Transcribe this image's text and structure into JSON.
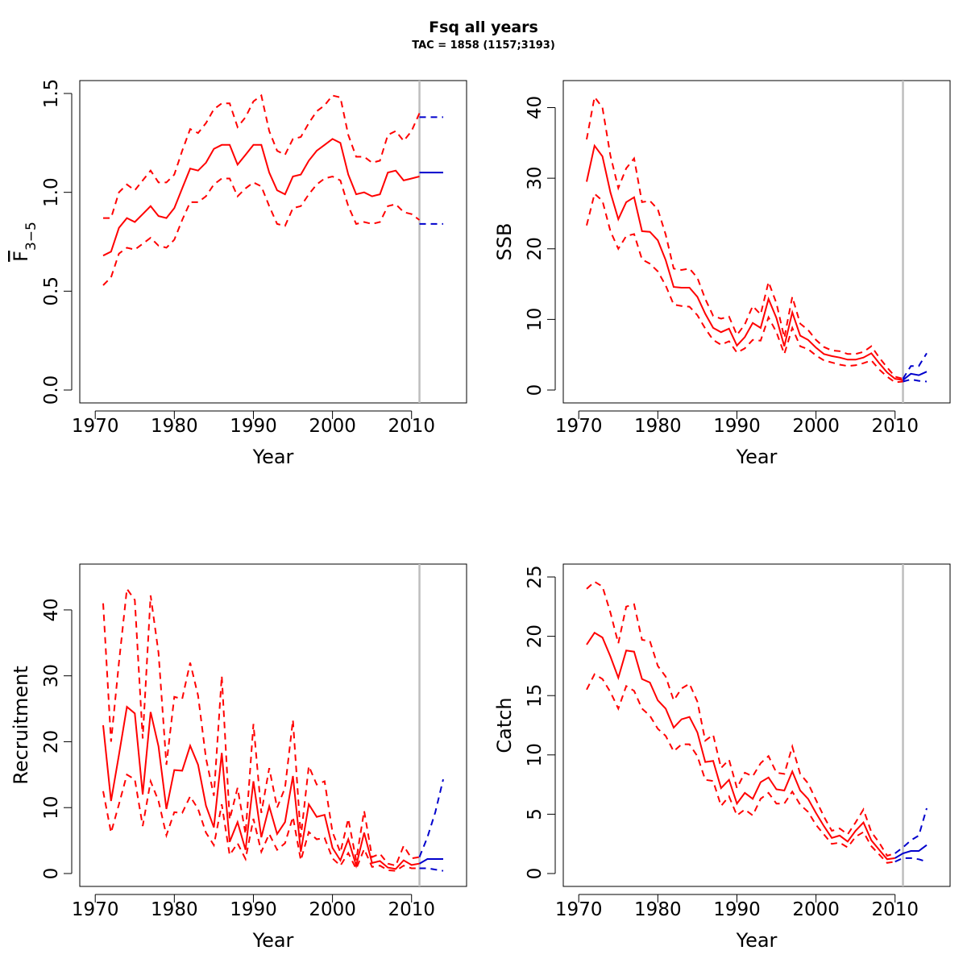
{
  "title": "Fsq all years",
  "subtitle": "TAC = 1858 (1157;3193)",
  "colors": {
    "historic": "#ff0000",
    "projection": "#0000cc",
    "reference_line": "#bebebe"
  },
  "chart_data": [
    {
      "type": "line",
      "xlabel": "Year",
      "ylabel": "F3-5",
      "ylabel_main": "F",
      "ylabel_sub": "3−5",
      "xlim": [
        1970,
        2015
      ],
      "ylim": [
        0,
        1.5
      ],
      "xticks": [
        1970,
        1980,
        1990,
        2000,
        2010
      ],
      "yticks": [
        0.0,
        0.5,
        1.0,
        1.5
      ],
      "ytick_labels": [
        "0.0",
        "0.5",
        "1.0",
        "1.5"
      ],
      "vline_x": 2011,
      "historic": {
        "x": [
          1971,
          1972,
          1973,
          1974,
          1975,
          1976,
          1977,
          1978,
          1979,
          1980,
          1981,
          1982,
          1983,
          1984,
          1985,
          1986,
          1987,
          1988,
          1989,
          1990,
          1991,
          1992,
          1993,
          1994,
          1995,
          1996,
          1997,
          1998,
          1999,
          2000,
          2001,
          2002,
          2003,
          2004,
          2005,
          2006,
          2007,
          2008,
          2009,
          2010,
          2011
        ],
        "estimate": [
          0.68,
          0.7,
          0.82,
          0.87,
          0.85,
          0.89,
          0.93,
          0.88,
          0.87,
          0.92,
          1.02,
          1.12,
          1.11,
          1.15,
          1.22,
          1.24,
          1.24,
          1.14,
          1.19,
          1.24,
          1.24,
          1.1,
          1.01,
          0.99,
          1.08,
          1.09,
          1.16,
          1.21,
          1.24,
          1.27,
          1.25,
          1.09,
          0.99,
          1.0,
          0.98,
          0.99,
          1.1,
          1.11,
          1.06,
          1.07,
          1.08
        ],
        "lower": [
          0.53,
          0.57,
          0.69,
          0.72,
          0.71,
          0.74,
          0.77,
          0.73,
          0.72,
          0.76,
          0.86,
          0.95,
          0.95,
          0.98,
          1.04,
          1.07,
          1.07,
          0.98,
          1.02,
          1.05,
          1.03,
          0.93,
          0.84,
          0.83,
          0.92,
          0.93,
          0.99,
          1.04,
          1.07,
          1.08,
          1.06,
          0.93,
          0.84,
          0.85,
          0.84,
          0.85,
          0.93,
          0.94,
          0.9,
          0.89,
          0.86
        ],
        "upper": [
          0.87,
          0.87,
          1.0,
          1.04,
          1.01,
          1.06,
          1.11,
          1.05,
          1.05,
          1.09,
          1.21,
          1.32,
          1.3,
          1.35,
          1.42,
          1.45,
          1.45,
          1.33,
          1.38,
          1.46,
          1.49,
          1.31,
          1.21,
          1.19,
          1.27,
          1.28,
          1.35,
          1.41,
          1.44,
          1.49,
          1.48,
          1.29,
          1.18,
          1.18,
          1.15,
          1.16,
          1.29,
          1.31,
          1.26,
          1.31,
          1.4
        ]
      },
      "projection": {
        "x": [
          2011,
          2012,
          2013,
          2014
        ],
        "estimate": [
          1.1,
          1.1,
          1.1,
          1.1
        ],
        "lower": [
          0.84,
          0.84,
          0.84,
          0.84
        ],
        "upper": [
          1.38,
          1.38,
          1.38,
          1.38
        ]
      }
    },
    {
      "type": "line",
      "xlabel": "Year",
      "ylabel": "SSB",
      "xlim": [
        1970,
        2015
      ],
      "ylim": [
        0,
        42
      ],
      "xticks": [
        1970,
        1980,
        1990,
        2000,
        2010
      ],
      "yticks": [
        0,
        10,
        20,
        30,
        40
      ],
      "ytick_labels": [
        "0",
        "10",
        "20",
        "30",
        "40"
      ],
      "vline_x": 2011,
      "historic": {
        "x": [
          1971,
          1972,
          1973,
          1974,
          1975,
          1976,
          1977,
          1978,
          1979,
          1980,
          1981,
          1982,
          1983,
          1984,
          1985,
          1986,
          1987,
          1988,
          1989,
          1990,
          1991,
          1992,
          1993,
          1994,
          1995,
          1996,
          1997,
          1998,
          1999,
          2000,
          2001,
          2002,
          2003,
          2004,
          2005,
          2006,
          2007,
          2008,
          2009,
          2010,
          2011
        ],
        "estimate": [
          29.5,
          34.6,
          33.1,
          28.0,
          24.2,
          26.6,
          27.3,
          22.5,
          22.4,
          21.2,
          18.4,
          14.6,
          14.5,
          14.5,
          13.2,
          10.8,
          8.8,
          8.2,
          8.7,
          6.3,
          7.5,
          9.5,
          8.8,
          12.9,
          10.2,
          6.2,
          11.0,
          7.7,
          7.1,
          6.0,
          5.1,
          4.8,
          4.6,
          4.3,
          4.3,
          4.6,
          5.2,
          3.8,
          2.5,
          1.6,
          1.4
        ],
        "lower": [
          23.3,
          27.8,
          26.8,
          22.5,
          20.0,
          21.8,
          22.1,
          18.5,
          17.9,
          16.8,
          14.8,
          12.1,
          11.9,
          11.8,
          10.6,
          8.7,
          7.1,
          6.4,
          6.9,
          5.3,
          5.9,
          7.1,
          7.0,
          10.3,
          8.2,
          5.1,
          8.8,
          6.2,
          5.8,
          4.9,
          4.2,
          3.9,
          3.6,
          3.4,
          3.5,
          3.8,
          4.2,
          2.9,
          1.9,
          1.1,
          1.2
        ],
        "upper": [
          35.5,
          41.5,
          40.0,
          33.2,
          28.6,
          31.4,
          32.8,
          26.6,
          26.8,
          25.6,
          22.0,
          17.2,
          17.0,
          17.2,
          15.9,
          12.9,
          10.5,
          10.1,
          10.4,
          7.8,
          9.3,
          11.9,
          10.7,
          15.3,
          12.3,
          7.4,
          13.2,
          9.4,
          8.5,
          7.1,
          6.1,
          5.6,
          5.5,
          5.1,
          5.1,
          5.4,
          6.2,
          4.6,
          3.2,
          1.9,
          1.6
        ]
      },
      "projection": {
        "x": [
          2011,
          2012,
          2013,
          2014
        ],
        "estimate": [
          1.4,
          2.3,
          2.1,
          2.6
        ],
        "lower": [
          1.2,
          1.5,
          1.3,
          1.2
        ],
        "upper": [
          1.6,
          3.4,
          3.4,
          5.2
        ]
      }
    },
    {
      "type": "line",
      "xlabel": "Year",
      "ylabel": "Recruitment",
      "xlim": [
        1970,
        2015
      ],
      "ylim": [
        0,
        45
      ],
      "xticks": [
        1970,
        1980,
        1990,
        2000,
        2010
      ],
      "yticks": [
        0,
        10,
        20,
        30,
        40
      ],
      "ytick_labels": [
        "0",
        "10",
        "20",
        "30",
        "40"
      ],
      "vline_x": 2011,
      "historic": {
        "x": [
          1971,
          1972,
          1973,
          1974,
          1975,
          1976,
          1977,
          1978,
          1979,
          1980,
          1981,
          1982,
          1983,
          1984,
          1985,
          1986,
          1987,
          1988,
          1989,
          1990,
          1991,
          1992,
          1993,
          1994,
          1995,
          1996,
          1997,
          1998,
          1999,
          2000,
          2001,
          2002,
          2003,
          2004,
          2005,
          2006,
          2007,
          2008,
          2009,
          2010,
          2011
        ],
        "estimate": [
          22.5,
          11.0,
          18.0,
          25.3,
          24.3,
          12.0,
          24.5,
          19.3,
          9.8,
          15.7,
          15.6,
          19.4,
          16.5,
          10.3,
          7.0,
          18.3,
          4.8,
          7.8,
          3.6,
          14.0,
          5.5,
          10.2,
          6.0,
          7.8,
          14.8,
          3.3,
          10.5,
          8.6,
          8.9,
          3.9,
          2.0,
          5.2,
          1.2,
          6.2,
          1.6,
          1.9,
          0.9,
          0.7,
          2.0,
          1.3,
          1.5
        ],
        "lower": [
          12.5,
          6.2,
          10.5,
          15.0,
          14.3,
          7.2,
          14.0,
          11.0,
          5.8,
          9.3,
          9.2,
          11.7,
          9.8,
          6.2,
          4.3,
          10.5,
          2.8,
          4.6,
          2.2,
          8.3,
          3.3,
          6.0,
          3.6,
          4.6,
          8.6,
          2.0,
          6.3,
          5.2,
          5.4,
          2.3,
          1.2,
          3.1,
          0.7,
          3.7,
          1.0,
          1.2,
          0.5,
          0.4,
          1.2,
          0.8,
          0.8
        ],
        "upper": [
          41.0,
          20.0,
          32.0,
          43.2,
          41.5,
          20.5,
          42.2,
          33.5,
          16.5,
          26.8,
          26.5,
          32.0,
          27.0,
          17.5,
          11.8,
          30.0,
          8.2,
          13.0,
          6.0,
          22.7,
          9.2,
          16.0,
          10.0,
          13.0,
          23.3,
          5.5,
          16.3,
          13.5,
          14.0,
          6.3,
          3.2,
          8.3,
          2.0,
          9.5,
          2.5,
          3.0,
          1.5,
          1.2,
          4.2,
          2.3,
          2.5
        ]
      },
      "projection": {
        "x": [
          2011,
          2012,
          2013,
          2014
        ],
        "estimate": [
          1.5,
          2.2,
          2.2,
          2.2
        ],
        "lower": [
          0.8,
          0.8,
          0.6,
          0.4
        ],
        "upper": [
          2.5,
          5.5,
          9.3,
          14.3
        ]
      }
    },
    {
      "type": "line",
      "xlabel": "Year",
      "ylabel": "Catch",
      "xlim": [
        1970,
        2015
      ],
      "ylim": [
        0,
        25
      ],
      "xticks": [
        1970,
        1980,
        1990,
        2000,
        2010
      ],
      "yticks": [
        0,
        5,
        10,
        15,
        20,
        25
      ],
      "ytick_labels": [
        "0",
        "5",
        "10",
        "15",
        "20",
        "25"
      ],
      "vline_x": 2011,
      "historic": {
        "x": [
          1971,
          1972,
          1973,
          1974,
          1975,
          1976,
          1977,
          1978,
          1979,
          1980,
          1981,
          1982,
          1983,
          1984,
          1985,
          1986,
          1987,
          1988,
          1989,
          1990,
          1991,
          1992,
          1993,
          1994,
          1995,
          1996,
          1997,
          1998,
          1999,
          2000,
          2001,
          2002,
          2003,
          2004,
          2005,
          2006,
          2007,
          2008,
          2009,
          2010
        ],
        "estimate": [
          19.3,
          20.3,
          19.9,
          18.3,
          16.5,
          18.8,
          18.7,
          16.4,
          16.1,
          14.6,
          13.9,
          12.3,
          13.0,
          13.2,
          11.9,
          9.4,
          9.5,
          7.2,
          7.9,
          5.9,
          6.8,
          6.3,
          7.7,
          8.1,
          7.1,
          7.0,
          8.6,
          7.0,
          6.3,
          5.1,
          4.0,
          3.0,
          3.2,
          2.7,
          3.6,
          4.3,
          2.8,
          2.0,
          1.2,
          1.3
        ],
        "lower": [
          15.5,
          16.8,
          16.4,
          15.3,
          13.9,
          15.8,
          15.4,
          13.9,
          13.3,
          12.2,
          11.6,
          10.3,
          10.9,
          10.9,
          9.9,
          7.9,
          7.8,
          5.7,
          6.5,
          4.9,
          5.4,
          4.9,
          6.3,
          6.8,
          5.9,
          5.9,
          6.9,
          5.8,
          5.2,
          4.1,
          3.3,
          2.5,
          2.6,
          2.2,
          3.1,
          3.5,
          2.3,
          1.6,
          0.9,
          1.0
        ],
        "upper": [
          24.0,
          24.6,
          24.2,
          22.0,
          19.4,
          22.5,
          22.7,
          19.7,
          19.6,
          17.5,
          16.6,
          14.6,
          15.6,
          16.0,
          14.5,
          11.2,
          11.7,
          8.9,
          9.6,
          7.2,
          8.5,
          8.2,
          9.3,
          9.9,
          8.5,
          8.4,
          10.7,
          8.4,
          7.6,
          6.2,
          4.8,
          3.6,
          3.8,
          3.3,
          4.3,
          5.4,
          3.5,
          2.6,
          1.5,
          1.7
        ]
      },
      "projection": {
        "x": [
          2010,
          2011,
          2012,
          2013,
          2014
        ],
        "estimate": [
          1.3,
          1.7,
          1.9,
          1.9,
          2.4
        ],
        "lower": [
          1.0,
          1.3,
          1.3,
          1.2,
          1.0
        ],
        "upper": [
          1.7,
          2.2,
          2.8,
          3.2,
          5.5
        ]
      }
    }
  ]
}
